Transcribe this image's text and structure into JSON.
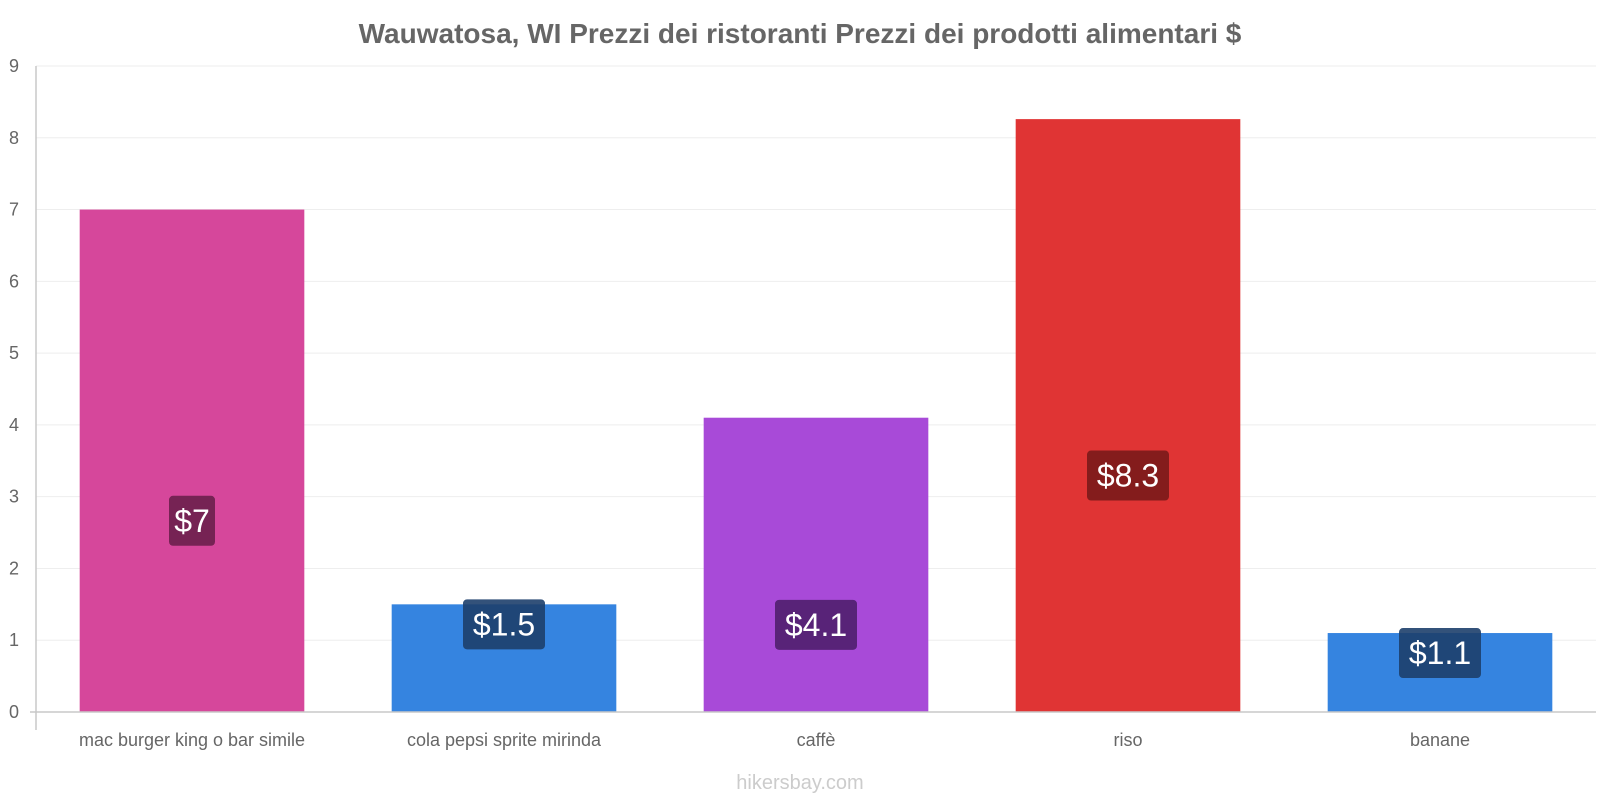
{
  "chart_data": {
    "type": "bar",
    "title": "Wauwatosa, WI Prezzi dei ristoranti Prezzi dei prodotti alimentari $",
    "categories": [
      "mac burger king o bar simile",
      "cola pepsi sprite mirinda",
      "caffè",
      "riso",
      "banane"
    ],
    "values": [
      7,
      1.5,
      4.1,
      8.26,
      1.1
    ],
    "value_labels": [
      "$7",
      "$1.5",
      "$4.1",
      "$8.3",
      "$1.1"
    ],
    "bar_colors": [
      "#d6479b",
      "#3584e0",
      "#a84ad8",
      "#e03434",
      "#3584e0"
    ],
    "label_box_colors": [
      "#6b1f4c",
      "#1d3f6b",
      "#4f1f6e",
      "#7a1a1a",
      "#1d3f6b"
    ],
    "ylim": [
      0,
      9
    ],
    "yticks": [
      0,
      1,
      2,
      3,
      4,
      5,
      6,
      7,
      8,
      9
    ],
    "xlabel": "",
    "ylabel": "",
    "grid": true
  },
  "footer": {
    "credit": "hikersbay.com"
  }
}
